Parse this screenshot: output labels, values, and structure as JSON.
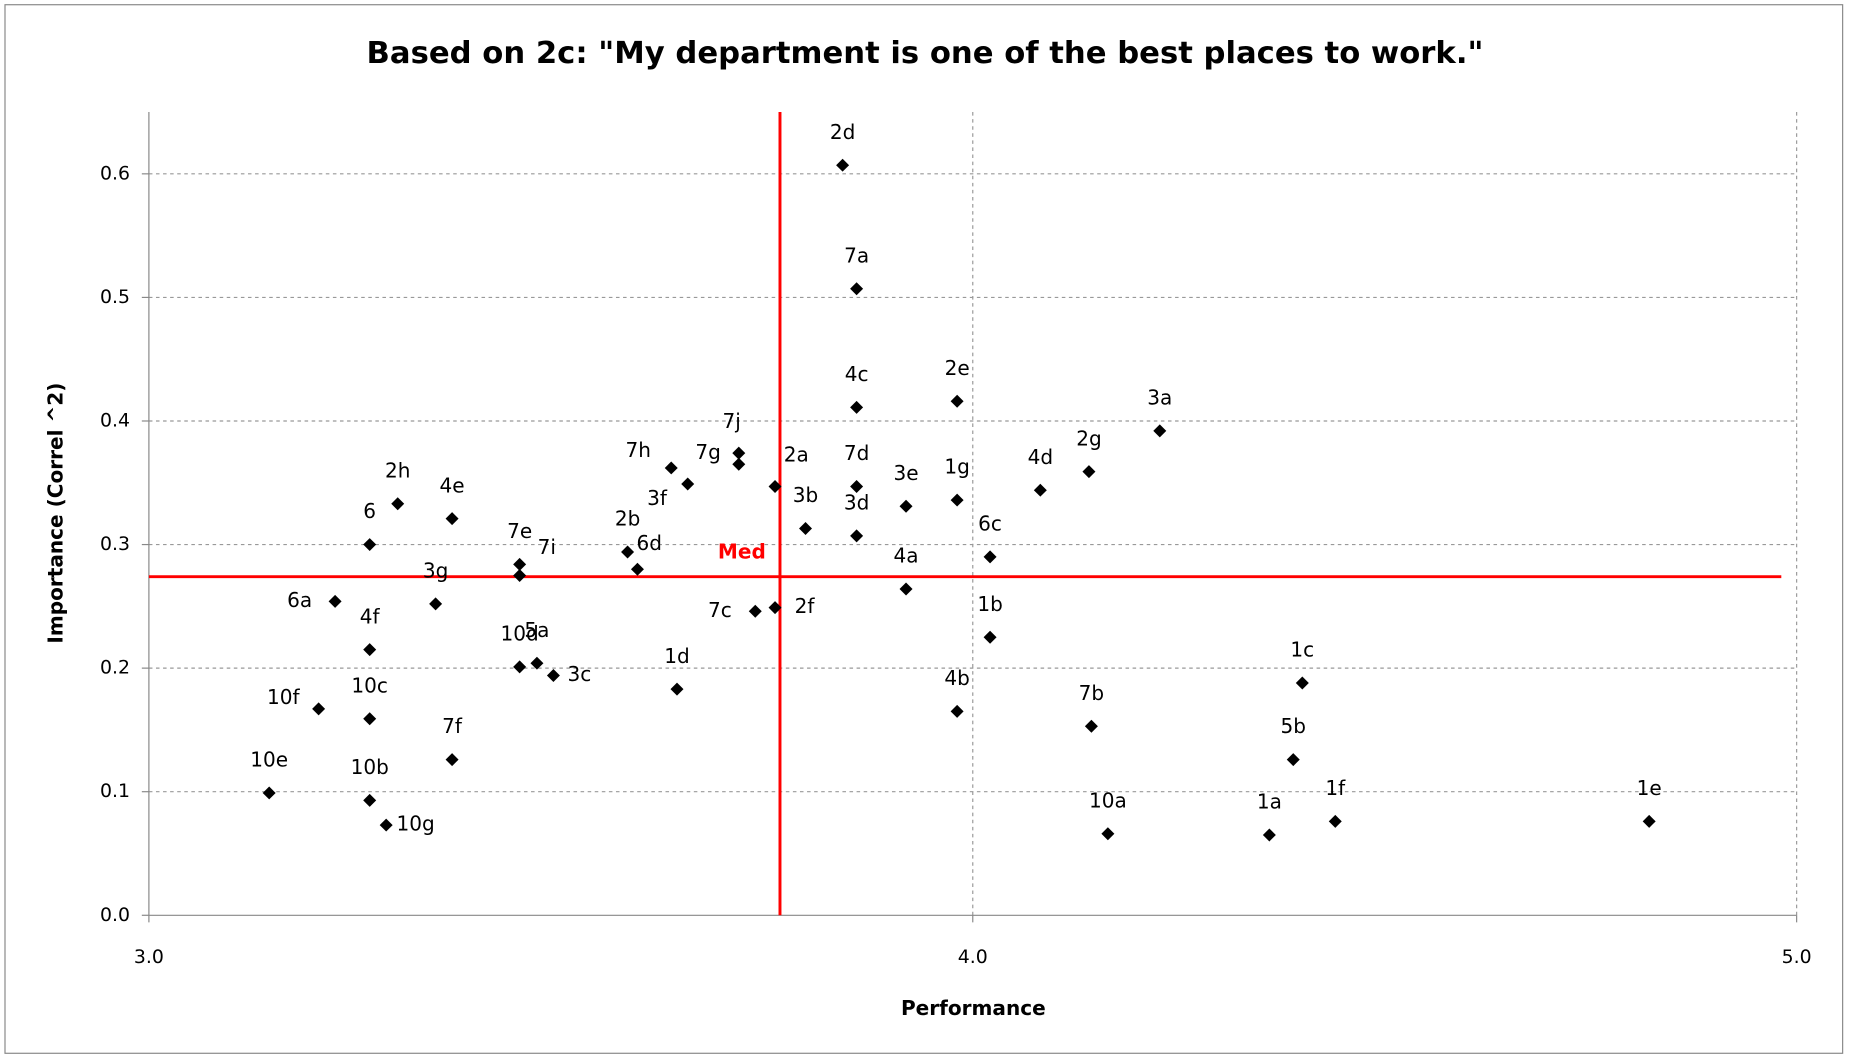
{
  "chart_data": {
    "type": "scatter",
    "title": "Based on 2c: \"My department is one of the best places to work.\"",
    "xlabel": "Performance",
    "ylabel": "Importance (Correl ^2)",
    "labels": [
      "2d",
      "7a",
      "4c",
      "2e",
      "3a",
      "7j",
      "7g",
      "7h",
      "3f",
      "2a",
      "7d",
      "4d",
      "2g",
      "3e",
      "1g",
      "2h",
      "4e",
      "3b",
      "3d",
      "6",
      "2b",
      "6c",
      "7e",
      "7i",
      "6d",
      "3g",
      "6a",
      "4a",
      "7c",
      "2f",
      "1b",
      "4f",
      "10d",
      "5a",
      "3c",
      "1d",
      "1c",
      "10f",
      "10c",
      "4b",
      "7b",
      "7f",
      "5b",
      "10e",
      "10b",
      "10g",
      "10a",
      "1a",
      "1f",
      "1e"
    ],
    "x": [
      3.842,
      3.859,
      3.859,
      3.981,
      4.227,
      3.716,
      3.716,
      3.634,
      3.654,
      3.76,
      3.859,
      4.082,
      4.141,
      3.919,
      3.981,
      3.302,
      3.368,
      3.797,
      3.859,
      3.268,
      3.581,
      4.021,
      3.45,
      3.45,
      3.593,
      3.348,
      3.226,
      3.919,
      3.736,
      3.76,
      4.021,
      3.268,
      3.45,
      3.471,
      3.491,
      3.641,
      4.4,
      3.206,
      3.268,
      3.981,
      4.144,
      3.368,
      4.389,
      3.146,
      3.268,
      3.288,
      4.164,
      4.36,
      4.44,
      4.821
    ],
    "values": [
      0.607,
      0.507,
      0.411,
      0.416,
      0.392,
      0.374,
      0.365,
      0.362,
      0.349,
      0.347,
      0.347,
      0.344,
      0.359,
      0.331,
      0.336,
      0.333,
      0.321,
      0.313,
      0.307,
      0.3,
      0.294,
      0.29,
      0.284,
      0.275,
      0.28,
      0.252,
      0.254,
      0.264,
      0.246,
      0.249,
      0.225,
      0.215,
      0.201,
      0.204,
      0.194,
      0.183,
      0.188,
      0.167,
      0.159,
      0.165,
      0.153,
      0.126,
      0.126,
      0.099,
      0.093,
      0.073,
      0.066,
      0.065,
      0.076,
      0.076
    ],
    "color": "#000000",
    "median": {
      "x": 3.766,
      "y": 0.274,
      "label": "Med",
      "color": "#ff0000"
    },
    "xlim": [
      3,
      5
    ],
    "ylim": [
      0,
      0.65
    ],
    "xticks": [
      {
        "value": 3,
        "label": "3.0"
      },
      {
        "value": 4,
        "label": "4.0"
      },
      {
        "value": 5,
        "label": "5.0"
      }
    ],
    "yticks": [
      {
        "value": 0,
        "label": "0.0"
      },
      0.1,
      0.2,
      0.3,
      0.4,
      0.5,
      0.6
    ],
    "grid": true
  }
}
